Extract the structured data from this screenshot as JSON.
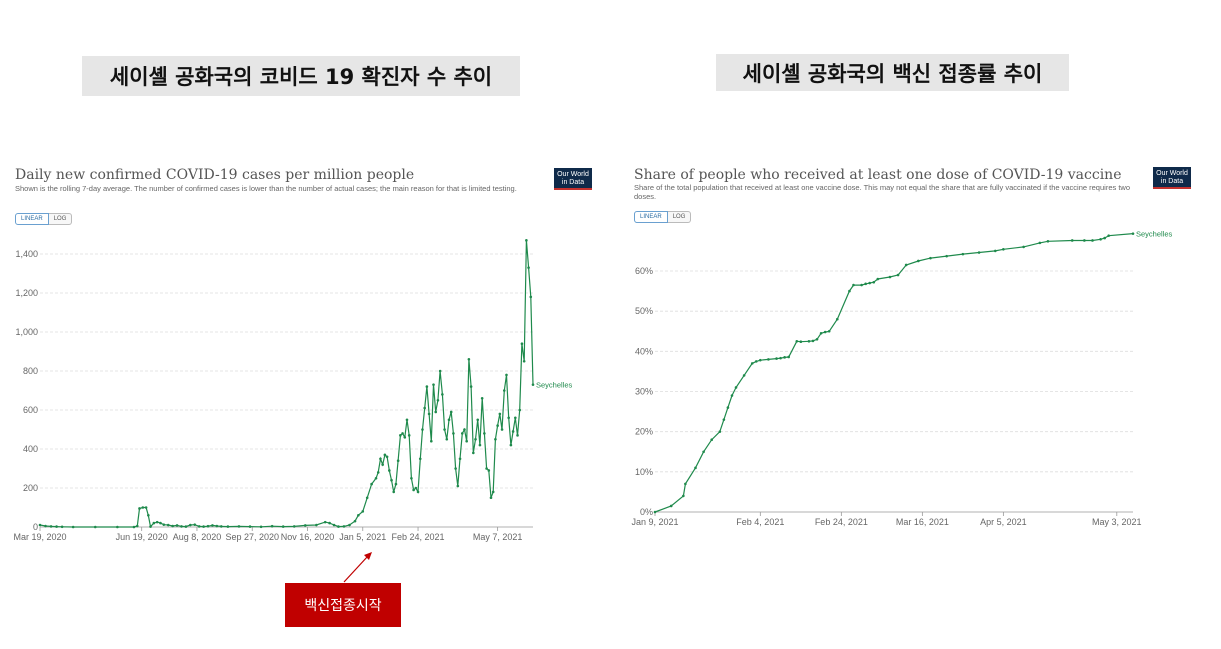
{
  "headings": {
    "left": "세이셸 공화국의 코비드 19 확진자 수 추이",
    "right": "세이셸 공화국의 백신 접종률 추이"
  },
  "annotation": {
    "label": "백신접종시작",
    "color": "#c00000"
  },
  "logo_text": "Our World in Data",
  "chart_data": [
    {
      "type": "line",
      "title": "Daily new confirmed COVID-19 cases per million people",
      "subtitle": "Shown is the rolling 7-day average. The number of confirmed cases is lower than the number of actual cases; the main reason for that is limited testing.",
      "scale_buttons": [
        "LINEAR",
        "LOG"
      ],
      "active_scale": "LINEAR",
      "y_ticks": [
        "0",
        "200",
        "400",
        "600",
        "800",
        "1,000",
        "1,200",
        "1,400"
      ],
      "ylim": [
        0,
        1400
      ],
      "x_ticks": [
        "Mar 19, 2020",
        "Jun 19, 2020",
        "Aug 8, 2020",
        "Sep 27, 2020",
        "Nov 16, 2020",
        "Jan 5, 2021",
        "Feb 24, 2021",
        "May 7, 2021"
      ],
      "x_tick_days": [
        0,
        92,
        142,
        192,
        242,
        292,
        342,
        414
      ],
      "color": "#1f8a4c",
      "series": [
        {
          "name": "Seychelles",
          "points": [
            [
              0,
              10
            ],
            [
              5,
              5
            ],
            [
              10,
              3
            ],
            [
              15,
              2
            ],
            [
              20,
              1
            ],
            [
              30,
              0
            ],
            [
              50,
              0
            ],
            [
              70,
              0
            ],
            [
              85,
              0
            ],
            [
              88,
              5
            ],
            [
              90,
              95
            ],
            [
              93,
              100
            ],
            [
              96,
              100
            ],
            [
              98,
              60
            ],
            [
              100,
              2
            ],
            [
              103,
              20
            ],
            [
              106,
              25
            ],
            [
              109,
              20
            ],
            [
              112,
              12
            ],
            [
              116,
              10
            ],
            [
              120,
              5
            ],
            [
              124,
              8
            ],
            [
              128,
              3
            ],
            [
              132,
              2
            ],
            [
              136,
              10
            ],
            [
              140,
              12
            ],
            [
              144,
              3
            ],
            [
              148,
              2
            ],
            [
              152,
              4
            ],
            [
              156,
              8
            ],
            [
              160,
              5
            ],
            [
              164,
              3
            ],
            [
              170,
              2
            ],
            [
              180,
              3
            ],
            [
              190,
              2
            ],
            [
              200,
              1
            ],
            [
              210,
              4
            ],
            [
              220,
              2
            ],
            [
              230,
              3
            ],
            [
              240,
              8
            ],
            [
              250,
              10
            ],
            [
              258,
              25
            ],
            [
              262,
              20
            ],
            [
              266,
              10
            ],
            [
              270,
              2
            ],
            [
              275,
              3
            ],
            [
              280,
              10
            ],
            [
              285,
              30
            ],
            [
              288,
              60
            ],
            [
              292,
              80
            ],
            [
              296,
              150
            ],
            [
              300,
              220
            ],
            [
              304,
              250
            ],
            [
              306,
              280
            ],
            [
              308,
              350
            ],
            [
              310,
              320
            ],
            [
              312,
              370
            ],
            [
              314,
              360
            ],
            [
              316,
              290
            ],
            [
              318,
              240
            ],
            [
              320,
              180
            ],
            [
              322,
              220
            ],
            [
              324,
              340
            ],
            [
              326,
              470
            ],
            [
              328,
              480
            ],
            [
              330,
              460
            ],
            [
              332,
              550
            ],
            [
              334,
              470
            ],
            [
              336,
              250
            ],
            [
              338,
              190
            ],
            [
              340,
              200
            ],
            [
              342,
              180
            ],
            [
              344,
              350
            ],
            [
              346,
              500
            ],
            [
              348,
              610
            ],
            [
              350,
              720
            ],
            [
              352,
              580
            ],
            [
              354,
              440
            ],
            [
              356,
              730
            ],
            [
              358,
              590
            ],
            [
              360,
              650
            ],
            [
              362,
              800
            ],
            [
              364,
              680
            ],
            [
              366,
              500
            ],
            [
              368,
              450
            ],
            [
              370,
              550
            ],
            [
              372,
              590
            ],
            [
              374,
              480
            ],
            [
              376,
              300
            ],
            [
              378,
              210
            ],
            [
              380,
              350
            ],
            [
              382,
              480
            ],
            [
              384,
              500
            ],
            [
              386,
              440
            ],
            [
              388,
              860
            ],
            [
              390,
              720
            ],
            [
              392,
              380
            ],
            [
              394,
              450
            ],
            [
              396,
              550
            ],
            [
              398,
              420
            ],
            [
              400,
              660
            ],
            [
              402,
              480
            ],
            [
              404,
              300
            ],
            [
              406,
              290
            ],
            [
              408,
              150
            ],
            [
              410,
              180
            ],
            [
              412,
              450
            ],
            [
              414,
              520
            ],
            [
              416,
              580
            ],
            [
              418,
              500
            ],
            [
              420,
              700
            ],
            [
              422,
              780
            ],
            [
              424,
              560
            ],
            [
              426,
              420
            ],
            [
              428,
              490
            ],
            [
              430,
              560
            ],
            [
              432,
              470
            ],
            [
              434,
              600
            ],
            [
              436,
              940
            ],
            [
              438,
              850
            ],
            [
              440,
              1470
            ],
            [
              442,
              1330
            ],
            [
              444,
              1180
            ],
            [
              446,
              730
            ]
          ]
        }
      ],
      "end_label": "Seychelles"
    },
    {
      "type": "line",
      "title": "Share of people who received at least one dose of COVID-19 vaccine",
      "subtitle": "Share of the total population that received at least one vaccine dose. This may not equal the share that are fully vaccinated if the vaccine requires two doses.",
      "scale_buttons": [
        "LINEAR",
        "LOG"
      ],
      "active_scale": "LINEAR",
      "y_ticks": [
        "0%",
        "10%",
        "20%",
        "30%",
        "40%",
        "50%",
        "60%"
      ],
      "ylim": [
        0,
        70
      ],
      "x_ticks": [
        "Jan 9, 2021",
        "Feb 4, 2021",
        "Feb 24, 2021",
        "Mar 16, 2021",
        "Apr 5, 2021",
        "May 3, 2021"
      ],
      "x_tick_days": [
        0,
        26,
        46,
        66,
        86,
        114
      ],
      "color": "#1f8a4c",
      "series": [
        {
          "name": "Seychelles",
          "points": [
            [
              0,
              0
            ],
            [
              4,
              1.5
            ],
            [
              7,
              4
            ],
            [
              7.5,
              7
            ],
            [
              10,
              11
            ],
            [
              12,
              15
            ],
            [
              14,
              18
            ],
            [
              16,
              20
            ],
            [
              17,
              23
            ],
            [
              18,
              26
            ],
            [
              19,
              29
            ],
            [
              20,
              31
            ],
            [
              22,
              34
            ],
            [
              24,
              37
            ],
            [
              25,
              37.5
            ],
            [
              26,
              37.8
            ],
            [
              28,
              38
            ],
            [
              30,
              38.2
            ],
            [
              31,
              38.3
            ],
            [
              32,
              38.5
            ],
            [
              33,
              38.6
            ],
            [
              35,
              42.5
            ],
            [
              36,
              42.4
            ],
            [
              38,
              42.5
            ],
            [
              39,
              42.6
            ],
            [
              40,
              43
            ],
            [
              41,
              44.5
            ],
            [
              42,
              44.8
            ],
            [
              43,
              45
            ],
            [
              45,
              48
            ],
            [
              48,
              55
            ],
            [
              49,
              56.5
            ],
            [
              51,
              56.5
            ],
            [
              52,
              56.8
            ],
            [
              53,
              57
            ],
            [
              54,
              57.2
            ],
            [
              55,
              58
            ],
            [
              58,
              58.5
            ],
            [
              60,
              59
            ],
            [
              62,
              61.5
            ],
            [
              65,
              62.5
            ],
            [
              68,
              63.2
            ],
            [
              72,
              63.7
            ],
            [
              76,
              64.2
            ],
            [
              80,
              64.6
            ],
            [
              84,
              65
            ],
            [
              86,
              65.4
            ],
            [
              91,
              66
            ],
            [
              95,
              67
            ],
            [
              97,
              67.4
            ],
            [
              103,
              67.6
            ],
            [
              106,
              67.6
            ],
            [
              108,
              67.6
            ],
            [
              110,
              67.9
            ],
            [
              111,
              68.2
            ],
            [
              112,
              68.8
            ],
            [
              118,
              69.3
            ]
          ]
        }
      ],
      "end_label": "Seychelles"
    }
  ]
}
